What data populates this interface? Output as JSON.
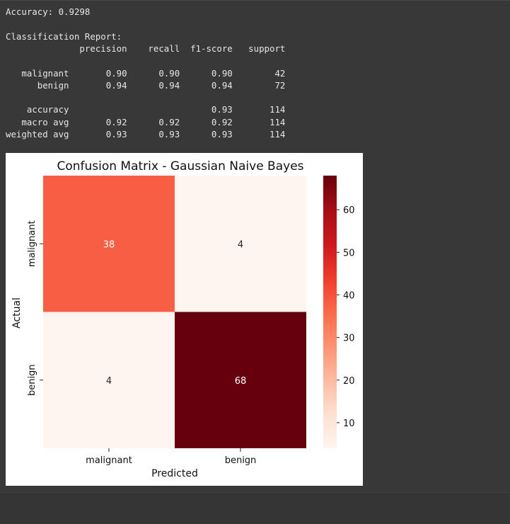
{
  "output": {
    "accuracy_line": "Accuracy: 0.9298",
    "report_title": "Classification Report:",
    "report_header": "              precision    recall  f1-score   support",
    "rows": [
      "   malignant       0.90      0.90      0.90        42",
      "      benign       0.94      0.94      0.94        72",
      "",
      "    accuracy                           0.93       114",
      "   macro avg       0.92      0.92      0.92       114",
      "weighted avg       0.93      0.93      0.93       114"
    ]
  },
  "chart_data": {
    "type": "heatmap",
    "title": "Confusion Matrix - Gaussian Naive Bayes",
    "xlabel": "Predicted",
    "ylabel": "Actual",
    "x_categories": [
      "malignant",
      "benign"
    ],
    "y_categories": [
      "malignant",
      "benign"
    ],
    "values": [
      [
        38,
        4
      ],
      [
        4,
        68
      ]
    ],
    "colormap": "Reds",
    "vmin": 4,
    "vmax": 68,
    "colorbar_ticks": [
      10,
      20,
      30,
      40,
      50,
      60
    ]
  }
}
